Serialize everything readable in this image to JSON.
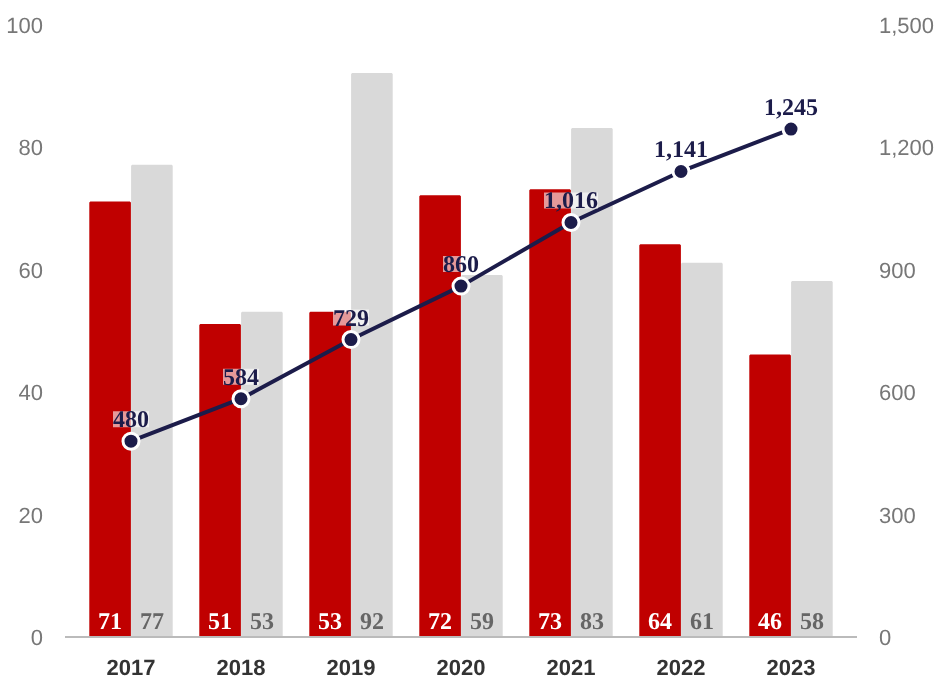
{
  "chart_data": {
    "type": "bar",
    "categories": [
      "2017",
      "2018",
      "2019",
      "2020",
      "2021",
      "2022",
      "2023"
    ],
    "series": [
      {
        "color": "#c00000",
        "values": [
          71,
          51,
          53,
          72,
          73,
          64,
          46
        ]
      },
      {
        "color": "#d9d9d9",
        "values": [
          77,
          53,
          92,
          59,
          83,
          61,
          58
        ]
      },
      {
        "type": "line",
        "axis": "y2",
        "color": "#1c1c4a",
        "values": [
          480,
          584,
          729,
          860,
          1016,
          1141,
          1245
        ],
        "value_labels": [
          "480",
          "584",
          "729",
          "860",
          "1,016",
          "1,141",
          "1,245"
        ]
      }
    ],
    "ylim": [
      0,
      100
    ],
    "yticks": [
      0,
      20,
      40,
      60,
      80,
      100
    ],
    "y2lim": [
      0,
      1500
    ],
    "y2ticks": [
      0,
      300,
      600,
      900,
      {
        "value": 1200,
        "label": "1,200"
      },
      {
        "value": 1500,
        "label": "1,500"
      }
    ],
    "data_labels": true,
    "marker": "circle"
  }
}
